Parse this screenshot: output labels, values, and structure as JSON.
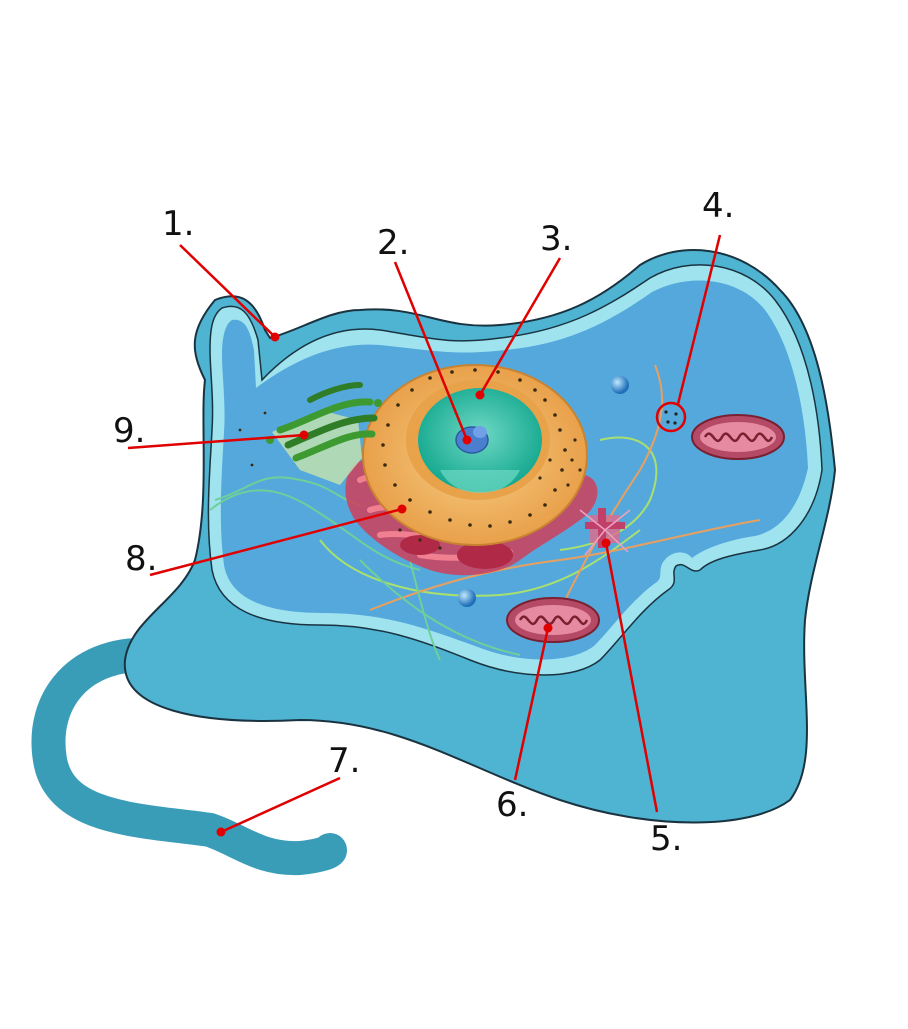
{
  "labels": {
    "l1": "1.",
    "l2": "2.",
    "l3": "3.",
    "l4": "4.",
    "l5": "5.",
    "l6": "6.",
    "l7": "7.",
    "l8": "8.",
    "l9": "9."
  },
  "colors": {
    "cytoplasm": "#4fb3d2",
    "inner": "#55a8dc",
    "membrane": "#9fe3ef",
    "flagellum": "#3a9db8",
    "leader": "#e00000",
    "nucleus_outer": "#f0b25a",
    "nucleus_inner": "#1fb29b",
    "mitochondrion": "#b54a66",
    "golgi": "#3c9a30",
    "er": "#d0405a"
  }
}
